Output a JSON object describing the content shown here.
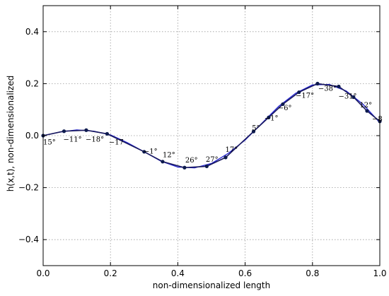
{
  "chart_data": {
    "type": "line",
    "xlabel": "non-dimensionalized length",
    "ylabel": "h(x,t), non-dimensionalized",
    "xlim": [
      0.0,
      1.0
    ],
    "ylim": [
      -0.5,
      0.5
    ],
    "xticks": [
      0.0,
      0.2,
      0.4,
      0.6,
      0.8,
      1.0
    ],
    "xtick_labels": [
      "0.0",
      "0.2",
      "0.4",
      "0.6",
      "0.8",
      "1.0"
    ],
    "yticks": [
      -0.4,
      -0.2,
      0.0,
      0.2,
      0.4
    ],
    "ytick_labels": [
      "−0.4",
      "−0.2",
      "0.0",
      "0.2",
      "0.4"
    ],
    "grid": true,
    "colors": {
      "curve": "#1f1fd0",
      "segments": "#1a1a5e",
      "points": "#0d1a4d"
    },
    "series": [
      {
        "style": "smooth",
        "x": [
          0.0,
          0.05,
          0.1,
          0.15,
          0.2,
          0.25,
          0.3,
          0.35,
          0.4,
          0.45,
          0.5,
          0.55,
          0.6,
          0.65,
          0.7,
          0.75,
          0.8,
          0.85,
          0.9,
          0.95,
          1.0
        ],
        "y": [
          0.0,
          0.014,
          0.022,
          0.017,
          0.003,
          -0.027,
          -0.062,
          -0.098,
          -0.121,
          -0.124,
          -0.107,
          -0.068,
          -0.017,
          0.048,
          0.113,
          0.163,
          0.195,
          0.197,
          0.172,
          0.121,
          0.05
        ]
      },
      {
        "style": "segments-with-markers",
        "x": [
          0.0,
          0.062,
          0.128,
          0.19,
          0.3,
          0.355,
          0.42,
          0.486,
          0.542,
          0.625,
          0.67,
          0.712,
          0.76,
          0.815,
          0.878,
          0.922,
          0.962,
          1.0
        ],
        "y": [
          0.0,
          0.017,
          0.021,
          0.007,
          -0.062,
          -0.1,
          -0.123,
          -0.118,
          -0.084,
          0.016,
          0.07,
          0.121,
          0.167,
          0.2,
          0.189,
          0.148,
          0.095,
          0.055
        ]
      }
    ],
    "annotations": [
      {
        "text": "15°",
        "x": 0.0,
        "y": -0.023
      },
      {
        "text": "−11°",
        "x": 0.06,
        "y": -0.012
      },
      {
        "text": "−18°",
        "x": 0.126,
        "y": -0.012
      },
      {
        "text": "−17",
        "x": 0.195,
        "y": -0.023
      },
      {
        "text": "−1°",
        "x": 0.298,
        "y": -0.058
      },
      {
        "text": "12°",
        "x": 0.355,
        "y": -0.072
      },
      {
        "text": "26°",
        "x": 0.422,
        "y": -0.092
      },
      {
        "text": "27°",
        "x": 0.483,
        "y": -0.089
      },
      {
        "text": "17°",
        "x": 0.541,
        "y": -0.052
      },
      {
        "text": "5°",
        "x": 0.62,
        "y": 0.031
      },
      {
        "text": "−1°",
        "x": 0.657,
        "y": 0.069
      },
      {
        "text": "−6°",
        "x": 0.697,
        "y": 0.109
      },
      {
        "text": "−17°",
        "x": 0.75,
        "y": 0.156
      },
      {
        "text": "−38°",
        "x": 0.817,
        "y": 0.183
      },
      {
        "text": "−31°",
        "x": 0.877,
        "y": 0.153
      },
      {
        "text": "12°",
        "x": 0.94,
        "y": 0.12
      },
      {
        "text": "−8",
        "x": 0.977,
        "y": 0.066
      }
    ]
  }
}
